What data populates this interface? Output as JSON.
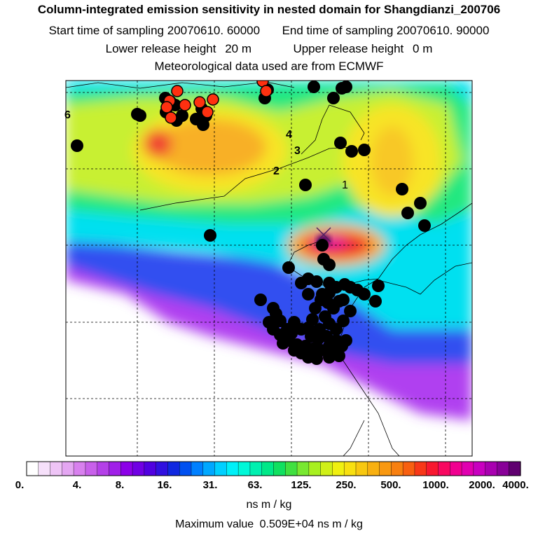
{
  "title": "Column-integrated emission sensitivity in nested domain for Shangdianzi_200706",
  "sampling": {
    "start_label": "Start time of sampling",
    "start_value": "20070610. 60000",
    "end_label": "End time of sampling",
    "end_value": "20070610. 90000"
  },
  "release": {
    "lower_label": "Lower release height",
    "lower_value": "20 m",
    "upper_label": "Upper release height",
    "upper_value": "0 m"
  },
  "met_note": "Meteorological data used are from ECMWF",
  "map": {
    "station_marker": "receptor-cross-icon",
    "track_labels": [
      "6",
      "4",
      "3",
      "2",
      "1"
    ],
    "plume_colors": {
      "white": "#ffffff",
      "violet": "#a000ff",
      "blue": "#2040ff",
      "cyan": "#00e8f0",
      "green": "#18e878",
      "yellowgreen": "#c8f020",
      "yellow": "#f8e820",
      "orange": "#f8a020",
      "red": "#f02020",
      "magenta": "#e000a0",
      "dark": "#500060"
    },
    "marker_colors": {
      "black": "#000000",
      "red": "#ff3010"
    }
  },
  "colorbar": {
    "ticks": [
      "0.",
      "4.",
      "8.",
      "16.",
      "31.",
      "63.",
      "125.",
      "250.",
      "500.",
      "1000.",
      "2000.",
      "4000."
    ],
    "units": "ns m / kg",
    "colors": [
      "#ffffff",
      "#f6e0fa",
      "#eec4f6",
      "#e4a6f2",
      "#d880ee",
      "#c860ea",
      "#b440e8",
      "#a020e8",
      "#8c00e8",
      "#7000e4",
      "#5000e0",
      "#3010e0",
      "#1028e0",
      "#0050f0",
      "#0080ff",
      "#00a8ff",
      "#00d0ff",
      "#00f0f8",
      "#00f8d8",
      "#00f0b0",
      "#00e888",
      "#10e060",
      "#40e040",
      "#78e830",
      "#a8f020",
      "#d0f018",
      "#f0f010",
      "#f8e010",
      "#f8c810",
      "#f8b010",
      "#f89810",
      "#f88010",
      "#f86010",
      "#f83818",
      "#f81830",
      "#f80860",
      "#f00090",
      "#e000b0",
      "#c800c0",
      "#a800b0",
      "#880098",
      "#600070"
    ]
  },
  "max_value_label": "Maximum value",
  "max_value": "0.509E+04 ns m / kg"
}
